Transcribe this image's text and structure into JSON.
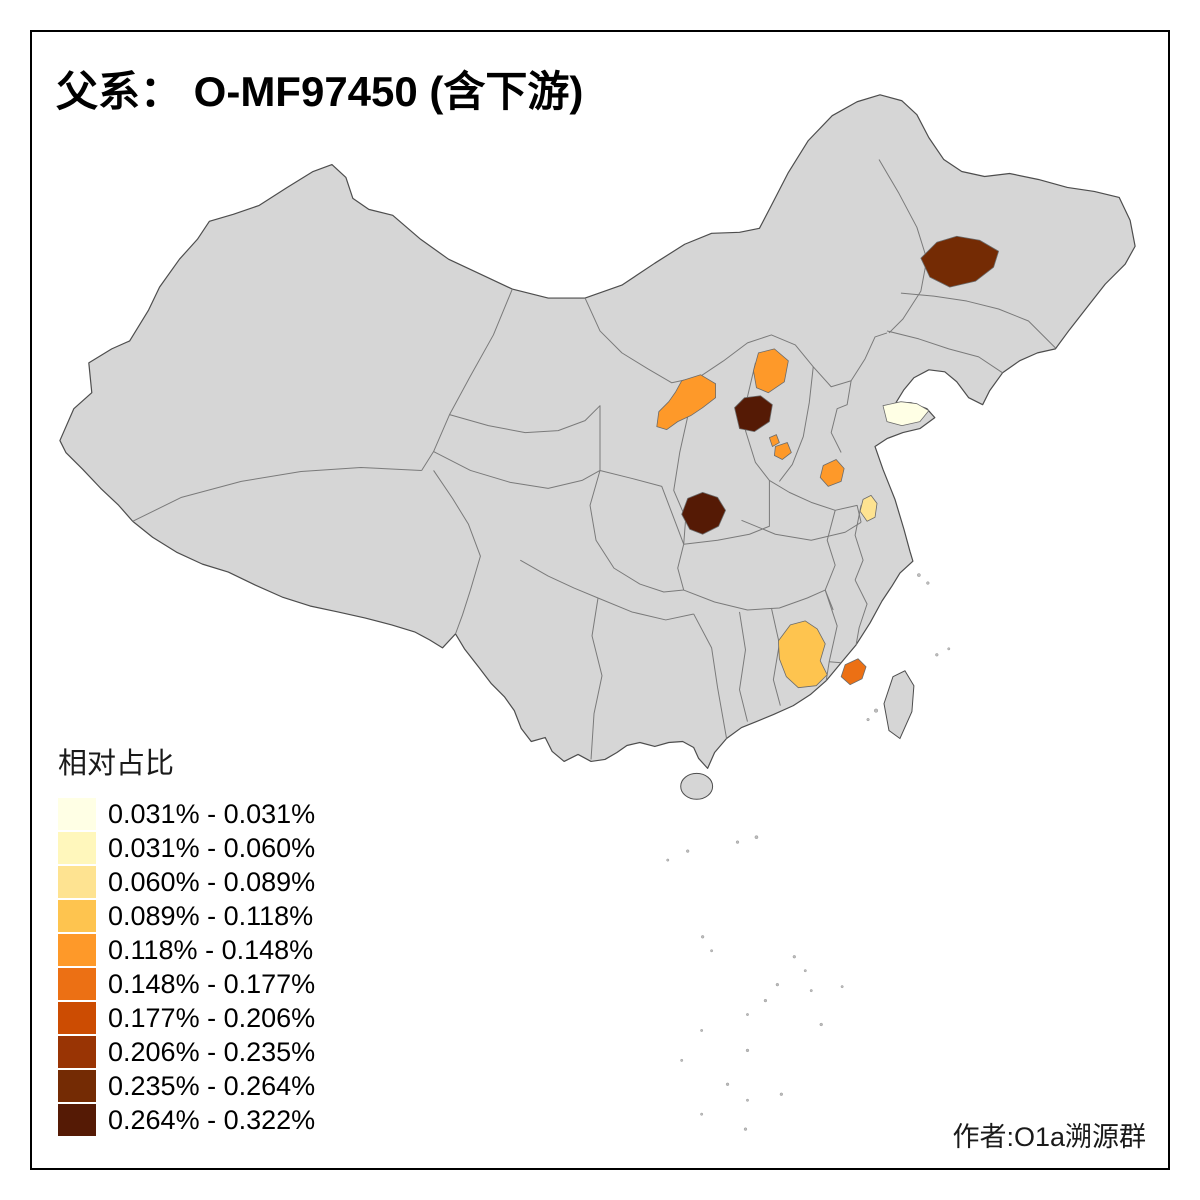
{
  "title": "父系： O-MF97450 (含下游)",
  "credit": "作者:O1a溯源群",
  "legend": {
    "title": "相对占比",
    "classes": [
      {
        "label": "0.031% - 0.031%",
        "color": "#FFFFE5"
      },
      {
        "label": "0.031% - 0.060%",
        "color": "#FFF7BC"
      },
      {
        "label": "0.060% - 0.089%",
        "color": "#FEE391"
      },
      {
        "label": "0.089% - 0.118%",
        "color": "#FEC44F"
      },
      {
        "label": "0.118% - 0.148%",
        "color": "#FE9929"
      },
      {
        "label": "0.148% - 0.177%",
        "color": "#EC7014"
      },
      {
        "label": "0.177% - 0.206%",
        "color": "#CC4C02"
      },
      {
        "label": "0.206% - 0.235%",
        "color": "#993404"
      },
      {
        "label": "0.235% - 0.264%",
        "color": "#742B04"
      },
      {
        "label": "0.264% - 0.322%",
        "color": "#551A05"
      }
    ]
  },
  "map": {
    "base_fill": "#D6D6D6",
    "outline_color": "#4D4D4D",
    "boundary_color": "#7A7A7A",
    "island_dot_color": "#BDBDBD",
    "regions": [
      {
        "id": "region-heilongjiang",
        "color": "#742B04"
      },
      {
        "id": "region-shanxi-north",
        "color": "#FE9929"
      },
      {
        "id": "region-shaanxi-north",
        "color": "#FE9929"
      },
      {
        "id": "region-loess-dark",
        "color": "#551A05"
      },
      {
        "id": "region-shanxi-south-a",
        "color": "#FE9929"
      },
      {
        "id": "region-shanxi-south-b",
        "color": "#FE9929"
      },
      {
        "id": "region-henan-west",
        "color": "#FE9929"
      },
      {
        "id": "region-shandong-tip",
        "color": "#FFFFE5"
      },
      {
        "id": "region-jiangsu",
        "color": "#FEE391"
      },
      {
        "id": "region-shaanxi-south-dark",
        "color": "#551A05"
      },
      {
        "id": "region-guangdong-north",
        "color": "#FEC44F"
      },
      {
        "id": "region-guangdong-coast",
        "color": "#EC7014"
      }
    ]
  }
}
